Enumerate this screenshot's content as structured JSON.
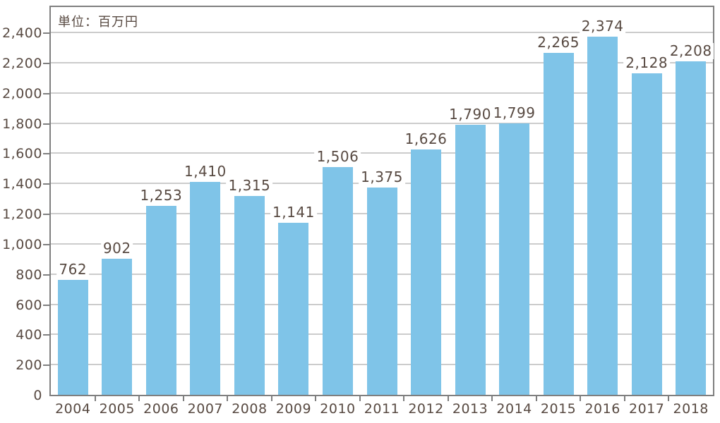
{
  "chart_data": {
    "type": "bar",
    "title": "",
    "unit_label": "単位：百万円",
    "categories": [
      "2004",
      "2005",
      "2006",
      "2007",
      "2008",
      "2009",
      "2010",
      "2011",
      "2012",
      "2013",
      "2014",
      "2015",
      "2016",
      "2017",
      "2018"
    ],
    "values": [
      762,
      902,
      1253,
      1410,
      1315,
      1141,
      1506,
      1375,
      1626,
      1790,
      1799,
      2265,
      2374,
      2128,
      2208
    ],
    "value_labels": [
      "762",
      "902",
      "1,253",
      "1,410",
      "1,315",
      "1,141",
      "1,506",
      "1,375",
      "1,626",
      "1,790",
      "1,799",
      "2,265",
      "2,374",
      "2,128",
      "2,208"
    ],
    "xlabel": "",
    "ylabel": "",
    "ylim": [
      0,
      2400
    ],
    "ytick_values": [
      0,
      200,
      400,
      600,
      800,
      1000,
      1200,
      1400,
      1600,
      1800,
      2000,
      2200,
      2400
    ],
    "ytick_labels": [
      "0",
      "200",
      "400",
      "600",
      "800",
      "1,000",
      "1,200",
      "1,400",
      "1,600",
      "1,800",
      "2,000",
      "2,200",
      "2,400"
    ],
    "grid": true,
    "legend": false,
    "bar_color": "#7FC4E8",
    "text_color": "#584A42",
    "grid_color": "#CCCCCC",
    "axis_color": "#7F7F7F",
    "background_color": "#FFFFFF"
  }
}
